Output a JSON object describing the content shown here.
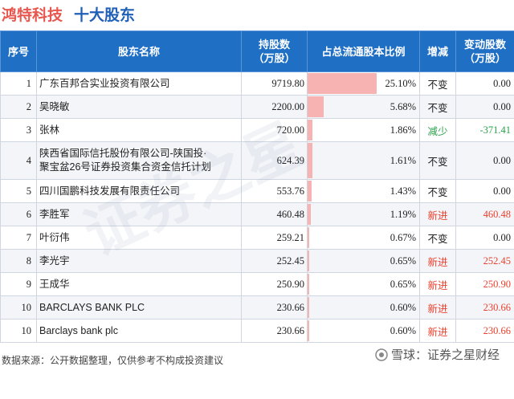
{
  "title": {
    "company": "鸿特科技",
    "subtitle": "十大股东"
  },
  "table": {
    "headers": {
      "index": "序号",
      "name": "股东名称",
      "shares_l1": "持股数",
      "shares_l2": "（万股）",
      "ratio": "占总流通股本比例",
      "change": "增减",
      "delta_l1": "变动股数",
      "delta_l2": "（万股）"
    },
    "rows": [
      {
        "index": "1",
        "name_l1": "广东百邦合实业投资有限公司",
        "name_l2": "",
        "shares": "9719.80",
        "ratio": "25.10%",
        "ratio_value": 25.1,
        "change": "不变",
        "change_type": "same",
        "delta": "0.00"
      },
      {
        "index": "2",
        "name_l1": "吴晓敏",
        "name_l2": "",
        "shares": "2200.00",
        "ratio": "5.68%",
        "ratio_value": 5.68,
        "change": "不变",
        "change_type": "same",
        "delta": "0.00"
      },
      {
        "index": "3",
        "name_l1": "张林",
        "name_l2": "",
        "shares": "720.00",
        "ratio": "1.86%",
        "ratio_value": 1.86,
        "change": "减少",
        "change_type": "down",
        "delta": "-371.41"
      },
      {
        "index": "4",
        "name_l1": "陕西省国际信托股份有限公司-陕国投·",
        "name_l2": "聚宝盆26号证券投资集合资金信托计划",
        "shares": "624.39",
        "ratio": "1.61%",
        "ratio_value": 1.61,
        "change": "不变",
        "change_type": "same",
        "delta": "0.00"
      },
      {
        "index": "5",
        "name_l1": "四川国鹏科技发展有限责任公司",
        "name_l2": "",
        "shares": "553.76",
        "ratio": "1.43%",
        "ratio_value": 1.43,
        "change": "不变",
        "change_type": "same",
        "delta": "0.00"
      },
      {
        "index": "6",
        "name_l1": "李胜军",
        "name_l2": "",
        "shares": "460.48",
        "ratio": "1.19%",
        "ratio_value": 1.19,
        "change": "新进",
        "change_type": "new",
        "delta": "460.48"
      },
      {
        "index": "7",
        "name_l1": "叶衍伟",
        "name_l2": "",
        "shares": "259.21",
        "ratio": "0.67%",
        "ratio_value": 0.67,
        "change": "不变",
        "change_type": "same",
        "delta": "0.00"
      },
      {
        "index": "8",
        "name_l1": "李光宇",
        "name_l2": "",
        "shares": "252.45",
        "ratio": "0.65%",
        "ratio_value": 0.65,
        "change": "新进",
        "change_type": "new",
        "delta": "252.45"
      },
      {
        "index": "9",
        "name_l1": "王成华",
        "name_l2": "",
        "shares": "250.90",
        "ratio": "0.65%",
        "ratio_value": 0.65,
        "change": "新进",
        "change_type": "new",
        "delta": "250.90"
      },
      {
        "index": "10",
        "name_l1": "BARCLAYS BANK PLC",
        "name_l2": "",
        "shares": "230.66",
        "ratio": "0.60%",
        "ratio_value": 0.6,
        "change": "新进",
        "change_type": "new",
        "delta": "230.66"
      },
      {
        "index": "10",
        "name_l1": "Barclays bank plc",
        "name_l2": "",
        "shares": "230.66",
        "ratio": "0.60%",
        "ratio_value": 0.6,
        "change": "新进",
        "change_type": "new",
        "delta": "230.66"
      }
    ]
  },
  "footer": {
    "source": "数据来源：公开数据整理，仅供参考不构成投资建议"
  },
  "brand": {
    "text": "雪球：证券之星财经",
    "logo_icon": "snowball-icon"
  },
  "watermark": "证券之星",
  "colors": {
    "header_bg": "#1f6fc5",
    "title_company": "#e8574f",
    "title_sub": "#1f5fb6",
    "bar": "#f6b3b2",
    "new": "#e8412d",
    "down": "#2aa14a"
  }
}
